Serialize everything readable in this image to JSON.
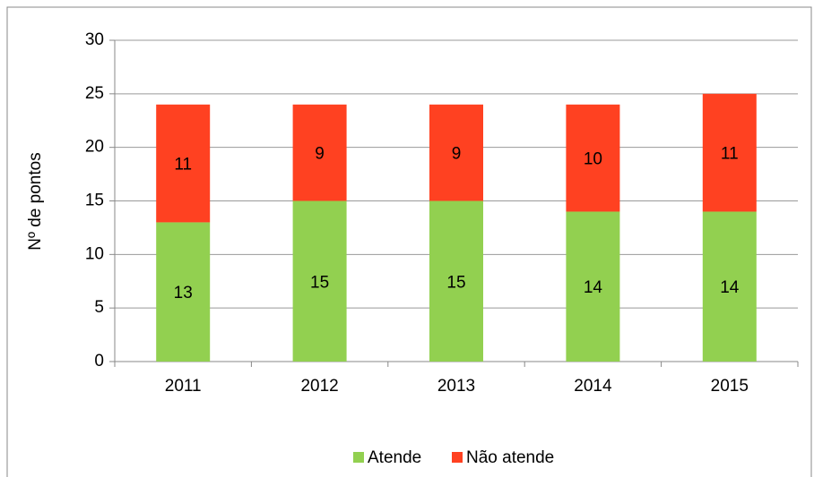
{
  "chart_data": {
    "type": "bar",
    "stacked": true,
    "y_label": "Nº de pontos",
    "categories": [
      "2011",
      "2012",
      "2013",
      "2014",
      "2015"
    ],
    "series": [
      {
        "name": "Atende",
        "color": "#92d050",
        "values": [
          13,
          15,
          15,
          14,
          14
        ]
      },
      {
        "name": "Não atende",
        "color": "#ff4121",
        "values": [
          11,
          9,
          9,
          10,
          11
        ]
      }
    ],
    "ylim": [
      0,
      30
    ],
    "yticks": [
      0,
      5,
      10,
      15,
      20,
      25,
      30
    ],
    "grid": true,
    "legend": "bottom"
  }
}
